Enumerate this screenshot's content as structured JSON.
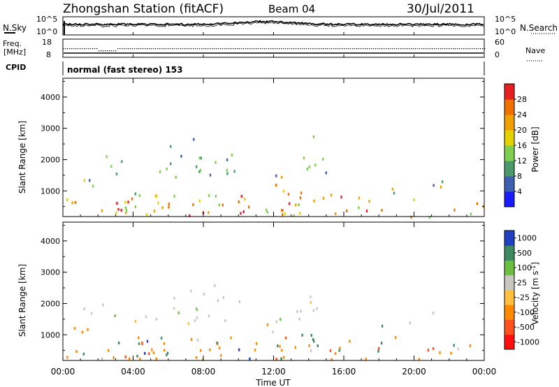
{
  "header": {
    "station": "Zhongshan Station (fitACF)",
    "beam": "Beam 04",
    "date": "30/Jul/2011"
  },
  "top_panels": {
    "nsky_label": "N.Sky",
    "nsky_ticks": [
      "10^5",
      "10^0"
    ],
    "nsearch_label": "N.Search",
    "nsearch_ticks": [
      "10^5",
      "10^0"
    ],
    "freq_label_1": "Freq.",
    "freq_label_2": "[MHz]",
    "freq_ticks": [
      "18",
      "8"
    ],
    "nave_label": "Nave",
    "nave_ticks": [
      "60",
      "0"
    ],
    "cpid_label": "CPID",
    "cpid_text": "normal (fast stereo) 153"
  },
  "colors": {
    "power": [
      "#1a1aff",
      "#3f5fb0",
      "#4a9a6a",
      "#7fcf50",
      "#e6d000",
      "#f0a000",
      "#f07000",
      "#e62020"
    ],
    "velocity": [
      "#ff1010",
      "#ff5020",
      "#ff8a00",
      "#ffc040",
      "#c8c8c0",
      "#6cc040",
      "#3d8a60",
      "#2040c0"
    ]
  },
  "chart_data": [
    {
      "type": "heatmap",
      "name": "power",
      "ylabel": "Slant Range [km]",
      "xlabel": "",
      "x_ticks": [
        "00:00",
        "04:00",
        "08:00",
        "12:00",
        "16:00",
        "20:00",
        "00:00"
      ],
      "xlim_hours": [
        0,
        24
      ],
      "y_ticks": [
        1000,
        2000,
        3000,
        4000
      ],
      "ylim_km": [
        180,
        4600
      ],
      "colorbar_label": "Power [dB]",
      "colorbar_ticks": [
        "4",
        "8",
        "12",
        "16",
        "20",
        "24",
        "28"
      ],
      "colorbar_range": [
        0,
        30
      ],
      "grid": false
    },
    {
      "type": "heatmap",
      "name": "velocity",
      "ylabel": "Slant Range [km]",
      "xlabel": "Time UT",
      "x_ticks": [
        "00:00",
        "04:00",
        "08:00",
        "12:00",
        "16:00",
        "20:00",
        "00:00"
      ],
      "xlim_hours": [
        0,
        24
      ],
      "y_ticks": [
        1000,
        2000,
        3000,
        4000
      ],
      "ylim_km": [
        180,
        4600
      ],
      "colorbar_label": "Velocity [m s^-1]",
      "colorbar_ticks": [
        "1000",
        "500",
        "100",
        "25",
        "-25",
        "-100",
        "-500",
        "-1000"
      ],
      "grid": false
    }
  ]
}
